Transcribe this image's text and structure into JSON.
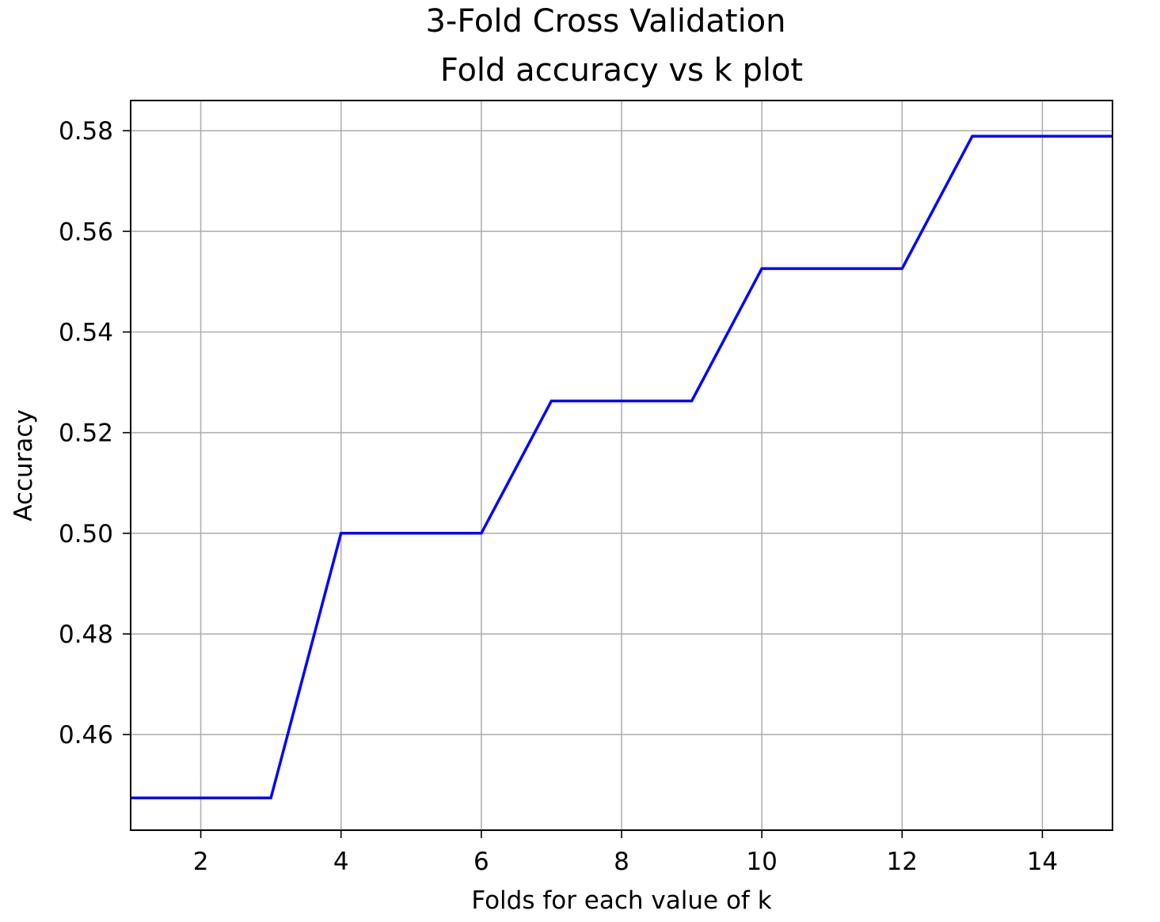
{
  "chart_data": {
    "type": "line",
    "title": "3-Fold Cross Validation",
    "subtitle": "Fold accuracy vs k plot",
    "xlabel": "Folds for each value of k",
    "ylabel": "Accuracy",
    "xlim": [
      1,
      15
    ],
    "ylim": [
      0.441,
      0.586
    ],
    "grid": true,
    "x": [
      1,
      2,
      3,
      4,
      5,
      6,
      7,
      8,
      9,
      10,
      11,
      12,
      13,
      14,
      15
    ],
    "series": [
      {
        "color": "#0000ff",
        "values": [
          0.4474,
          0.4474,
          0.4474,
          0.5,
          0.5,
          0.5,
          0.5263,
          0.5263,
          0.5263,
          0.5526,
          0.5526,
          0.5526,
          0.5789,
          0.5789,
          0.5789
        ]
      }
    ],
    "xticks": [
      2,
      4,
      6,
      8,
      10,
      12,
      14
    ],
    "xtick_labels": [
      "2",
      "4",
      "6",
      "8",
      "10",
      "12",
      "14"
    ],
    "yticks": [
      0.46,
      0.48,
      0.5,
      0.52,
      0.54,
      0.56,
      0.58
    ],
    "ytick_labels": [
      "0.46",
      "0.48",
      "0.50",
      "0.52",
      "0.54",
      "0.56",
      "0.58"
    ]
  }
}
